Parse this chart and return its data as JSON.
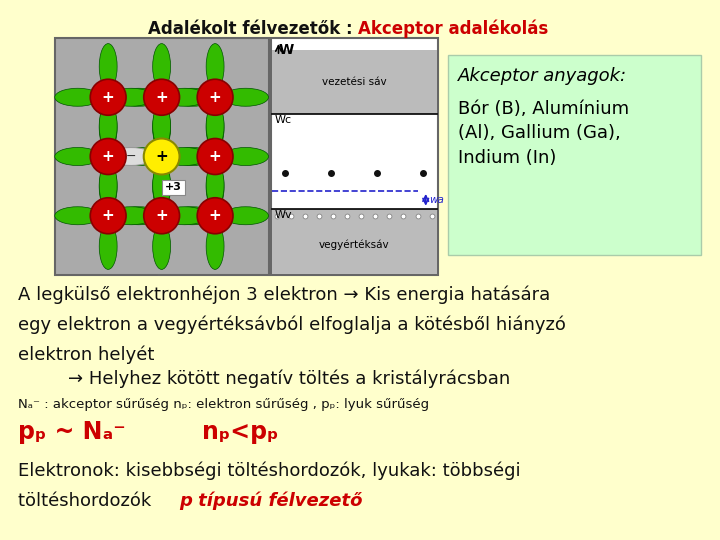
{
  "bg_color": "#FFFFCC",
  "title_black": "Adalékolt félvezetők : ",
  "title_red": "Akceptor adalékolás",
  "title_fontsize": 12,
  "akceptor_box_color": "#CCFFCC",
  "akceptor_text_italic": "Akceptor anyagok:",
  "akceptor_text_normal": "Bór (B), Alumínium\n(Al), Gallium (Ga),\nIndium (In)",
  "body_line1": "A legkülső elektronhéjon 3 elektron → Kis energia hatására",
  "body_line2": "egy elektron a vegyértéksávból elfoglalja a kötésből hiányzó",
  "body_line3": "elektron helyét",
  "body_line4": "→ Helyhez kötött negatív töltés a kristályrácsban",
  "small_line": "Nₐ⁻ : akceptor sűrűség nₚ: elektron sűrűség , pₚ: lyuk sűrűség",
  "formula1": "pₚ ~ Nₐ⁻",
  "formula2": "nₚ<pₚ",
  "last_line1": "Elektronok: kisebbségi töltéshordozók, lyukak: többségi",
  "last_line2_black": "töltéshordozók ",
  "last_line2_red": "p típusú félvezető"
}
